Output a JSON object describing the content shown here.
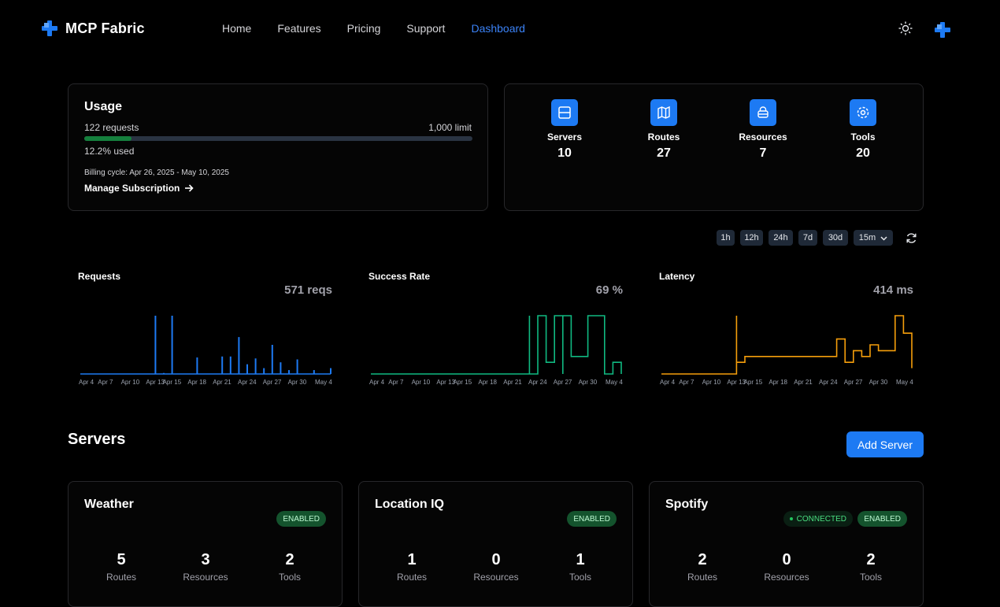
{
  "brand": {
    "name": "MCP Fabric"
  },
  "nav": {
    "items": [
      "Home",
      "Features",
      "Pricing",
      "Support",
      "Dashboard"
    ],
    "active": "Dashboard"
  },
  "usage": {
    "title": "Usage",
    "requests": "122 requests",
    "limit": "1,000 limit",
    "percent_text": "12.2% used",
    "fraction_used": 0.122,
    "billing": "Billing cycle: Apr 26, 2025 - May 10, 2025",
    "manage": "Manage Subscription"
  },
  "stats": [
    {
      "label": "Servers",
      "value": "10",
      "icon": "server-icon"
    },
    {
      "label": "Routes",
      "value": "27",
      "icon": "map-icon"
    },
    {
      "label": "Resources",
      "value": "7",
      "icon": "database-icon"
    },
    {
      "label": "Tools",
      "value": "20",
      "icon": "gear-icon"
    }
  ],
  "time_ranges": [
    "1h",
    "12h",
    "24h",
    "7d",
    "30d"
  ],
  "interval": "15m",
  "charts": {
    "ticks": [
      "Apr 4",
      "Apr 7",
      "Apr 10",
      "Apr 13",
      "Apr 15",
      "Apr 18",
      "Apr 21",
      "Apr 24",
      "Apr 27",
      "Apr 30",
      "May 4"
    ],
    "requests": {
      "title": "Requests",
      "summary": "571 reqs",
      "color": "#1d7af3"
    },
    "success": {
      "title": "Success Rate",
      "summary": "69 %",
      "color": "#10b981"
    },
    "latency": {
      "title": "Latency",
      "summary": "414 ms",
      "color": "#f59e0b"
    }
  },
  "chart_data": [
    {
      "type": "bar",
      "title": "Requests",
      "x": [
        "Apr 4",
        "Apr 6",
        "Apr 8",
        "Apr 10",
        "Apr 12",
        "Apr 13",
        "Apr 14",
        "Apr 15",
        "Apr 17",
        "Apr 18",
        "Apr 20",
        "Apr 21",
        "Apr 22",
        "Apr 23",
        "Apr 24",
        "Apr 25",
        "Apr 26",
        "Apr 27",
        "Apr 28",
        "Apr 29",
        "Apr 30",
        "May 2",
        "May 4"
      ],
      "values": [
        0,
        0,
        0,
        0,
        0,
        60,
        1,
        60,
        0,
        17,
        0,
        18,
        18,
        38,
        10,
        16,
        6,
        30,
        12,
        4,
        15,
        4,
        6
      ]
    },
    {
      "type": "line",
      "title": "Success Rate",
      "x": [
        "Apr 4",
        "Apr 13",
        "Apr 23",
        "Apr 23",
        "Apr 24",
        "Apr 25",
        "Apr 26",
        "Apr 27",
        "Apr 27",
        "Apr 28",
        "Apr 30",
        "May 2",
        "May 3",
        "May 4"
      ],
      "values": [
        0,
        0,
        100,
        0,
        100,
        20,
        100,
        0,
        100,
        30,
        100,
        0,
        20,
        0
      ]
    },
    {
      "type": "line",
      "title": "Latency",
      "x": [
        "Apr 4",
        "Apr 12",
        "Apr 13",
        "Apr 13",
        "Apr 14",
        "Apr 20",
        "Apr 24",
        "Apr 25",
        "Apr 26",
        "Apr 27",
        "Apr 28",
        "Apr 29",
        "Apr 30",
        "May 2",
        "May 3",
        "May 4"
      ],
      "values": [
        0,
        0,
        100,
        20,
        30,
        30,
        30,
        60,
        20,
        40,
        30,
        50,
        40,
        100,
        70,
        10
      ]
    }
  ],
  "servers": {
    "title": "Servers",
    "add_label": "Add Server",
    "items": [
      {
        "name": "Weather",
        "connected": "",
        "enabled": "ENABLED",
        "routes": "5",
        "resources": "3",
        "tools": "2"
      },
      {
        "name": "Location IQ",
        "connected": "",
        "enabled": "ENABLED",
        "routes": "1",
        "resources": "0",
        "tools": "1"
      },
      {
        "name": "Spotify",
        "connected": "CONNECTED",
        "enabled": "ENABLED",
        "routes": "2",
        "resources": "0",
        "tools": "2"
      }
    ],
    "labels": {
      "routes": "Routes",
      "resources": "Resources",
      "tools": "Tools"
    }
  }
}
